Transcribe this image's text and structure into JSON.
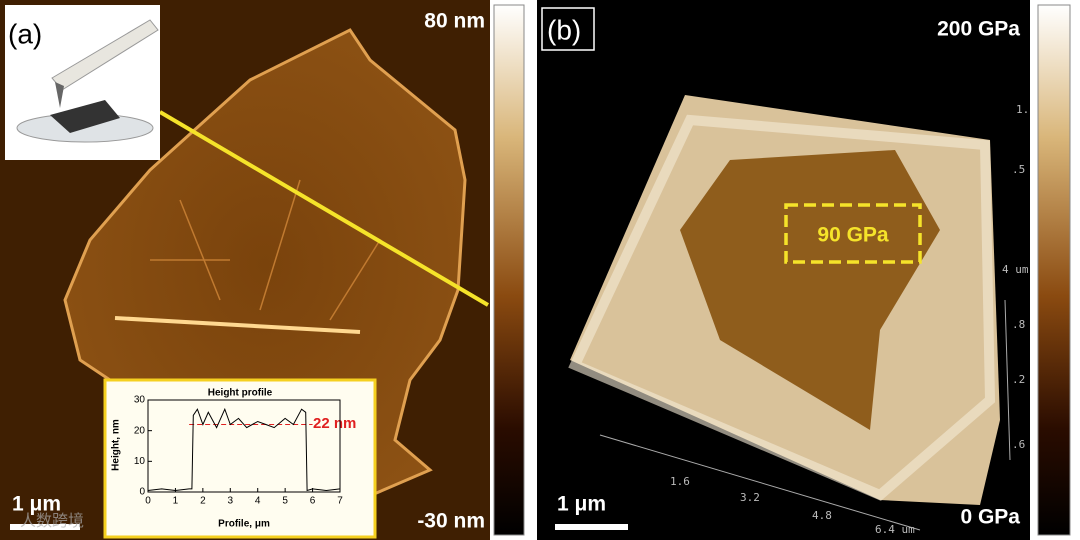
{
  "panel_a": {
    "label": "(a)",
    "scale_max": "80 nm",
    "scale_min": "-30 nm",
    "scale_bar": "1 μm",
    "inset": {
      "title": "Height profile",
      "ylabel": "Height, nm",
      "xlabel": "Profile, μm",
      "xlim": [
        0,
        7
      ],
      "ylim": [
        0,
        30
      ],
      "xticks": [
        0,
        1,
        2,
        3,
        4,
        5,
        6,
        7
      ],
      "yticks": [
        0,
        10,
        20,
        30
      ],
      "level": 22,
      "level_label": "22 nm",
      "x": [
        0,
        0.5,
        1,
        1.5,
        1.6,
        1.65,
        1.8,
        2,
        2.2,
        2.5,
        2.8,
        3,
        3.3,
        3.6,
        4,
        4.3,
        4.6,
        5,
        5.3,
        5.6,
        5.75,
        5.8,
        6,
        6.5,
        7
      ],
      "y": [
        0.5,
        1,
        0.5,
        1,
        1,
        25,
        27,
        22,
        26,
        21,
        27,
        22,
        24,
        21,
        23,
        22,
        21,
        24,
        22,
        27,
        26,
        0.5,
        1,
        0.5,
        1
      ]
    }
  },
  "panel_b": {
    "label": "(b)",
    "scale_max": "200 GPa",
    "scale_min": "0 GPa",
    "scale_bar": "1 μm",
    "region_label": "90 GPa",
    "axis_labels": [
      "1.6",
      "3.2",
      "4.8",
      "6.4 um"
    ],
    "side_labels": [
      "1.",
      ".5",
      "4 um",
      ".8",
      ".2",
      ".6"
    ]
  },
  "watermark": "人数跨境"
}
